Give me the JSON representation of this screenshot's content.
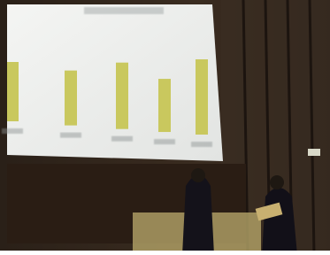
{
  "chart_data": {
    "type": "bar",
    "categories": [
      null,
      null,
      null,
      null,
      null
    ],
    "values": [
      67,
      62,
      75,
      60,
      85
    ],
    "color": "#c9c85e"
  }
}
